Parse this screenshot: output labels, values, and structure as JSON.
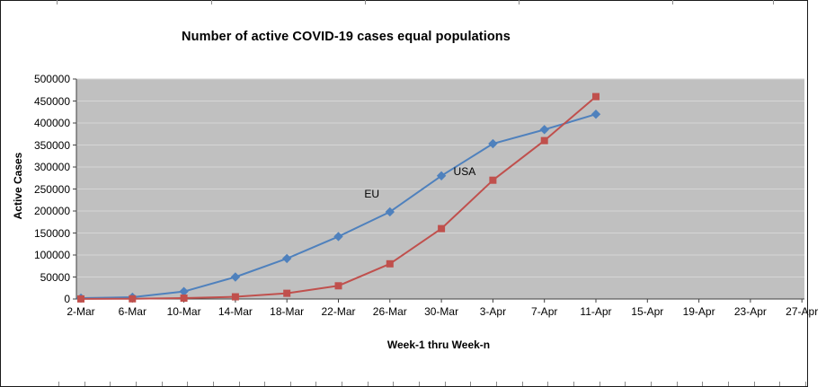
{
  "window": {
    "background": "#FFFFFF",
    "border_color": "#1A1A1A"
  },
  "chart_data": {
    "type": "line",
    "title": "Number of active COVID-19 cases equal populations",
    "xlabel": "Week-1 thru Week-n",
    "ylabel": "Active Cases",
    "ylim": [
      0,
      500000
    ],
    "y_tick_step": 50000,
    "y_ticks": [
      "0",
      "50000",
      "100000",
      "150000",
      "200000",
      "250000",
      "300000",
      "350000",
      "400000",
      "450000",
      "500000"
    ],
    "categories": [
      "2-Mar",
      "6-Mar",
      "10-Mar",
      "14-Mar",
      "18-Mar",
      "22-Mar",
      "26-Mar",
      "30-Mar",
      "3-Apr",
      "7-Apr",
      "11-Apr",
      "15-Apr",
      "19-Apr",
      "23-Apr",
      "27-Apr"
    ],
    "grid": "horizontal",
    "legend": "none",
    "plot_bg": "#C0C0C0",
    "gridline_color": "#D6D6D6",
    "axis_color": "#404040",
    "series": [
      {
        "name": "EU",
        "color": "#4F81BD",
        "marker": "diamond",
        "values": [
          2000,
          4000,
          17000,
          50000,
          92000,
          142000,
          198000,
          280000,
          353000,
          385000,
          420000
        ]
      },
      {
        "name": "USA",
        "color": "#C0504D",
        "marker": "square",
        "values": [
          200,
          500,
          2000,
          5000,
          13000,
          30000,
          80000,
          160000,
          270000,
          360000,
          460000
        ]
      }
    ],
    "annotations": [
      {
        "text": "EU",
        "x": 5.65,
        "y": 237000
      },
      {
        "text": "USA",
        "x": 7.45,
        "y": 288000
      }
    ]
  }
}
